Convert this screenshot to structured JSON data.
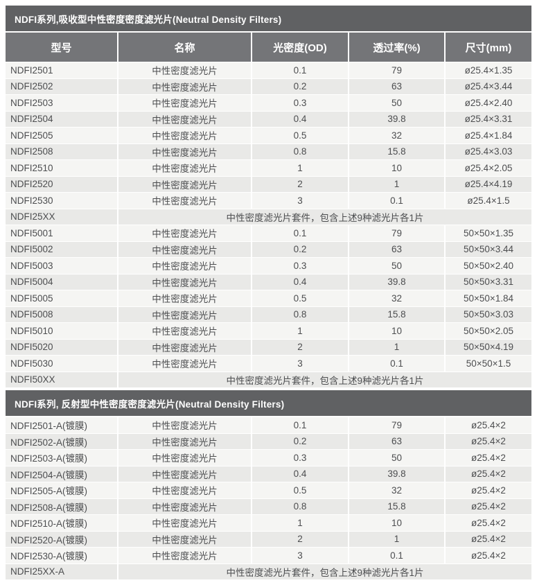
{
  "colors": {
    "section_bar_bg": "#606163",
    "header_bg": "#747578",
    "row_light": "#f5f5f3",
    "row_dark": "#e9e9e7",
    "body_text": "#4c4d4f",
    "header_text": "#ffffff"
  },
  "columns": [
    "型号",
    "名称",
    "光密度(OD)",
    "透过率(%)",
    "尺寸(mm)"
  ],
  "sections": [
    {
      "title": "NDFI系列,吸收型中性密度密度滤光片(Neutral Density Filters)",
      "show_column_header": true,
      "rows": [
        {
          "cells": [
            "NDFI2501",
            "中性密度滤光片",
            "0.1",
            "79",
            "ø25.4×1.35"
          ]
        },
        {
          "cells": [
            "NDFI2502",
            "中性密度滤光片",
            "0.2",
            "63",
            "ø25.4×3.44"
          ]
        },
        {
          "cells": [
            "NDFI2503",
            "中性密度滤光片",
            "0.3",
            "50",
            "ø25.4×2.40"
          ]
        },
        {
          "cells": [
            "NDFI2504",
            "中性密度滤光片",
            "0.4",
            "39.8",
            "ø25.4×3.31"
          ]
        },
        {
          "cells": [
            "NDFI2505",
            "中性密度滤光片",
            "0.5",
            "32",
            "ø25.4×1.84"
          ]
        },
        {
          "cells": [
            "NDFI2508",
            "中性密度滤光片",
            "0.8",
            "15.8",
            "ø25.4×3.03"
          ]
        },
        {
          "cells": [
            "NDFI2510",
            "中性密度滤光片",
            "1",
            "10",
            "ø25.4×2.05"
          ]
        },
        {
          "cells": [
            "NDFI2520",
            "中性密度滤光片",
            "2",
            "1",
            "ø25.4×4.19"
          ]
        },
        {
          "cells": [
            "NDFI2530",
            "中性密度滤光片",
            "3",
            "0.1",
            "ø25.4×1.5"
          ]
        },
        {
          "cells": [
            "NDFI25XX"
          ],
          "merged": "中性密度滤光片套件，包含上述9种滤光片各1片"
        },
        {
          "cells": [
            "NDFI5001",
            "中性密度滤光片",
            "0.1",
            "79",
            "50×50×1.35"
          ]
        },
        {
          "cells": [
            "NDFI5002",
            "中性密度滤光片",
            "0.2",
            "63",
            "50×50×3.44"
          ]
        },
        {
          "cells": [
            "NDFI5003",
            "中性密度滤光片",
            "0.3",
            "50",
            "50×50×2.40"
          ]
        },
        {
          "cells": [
            "NDFI5004",
            "中性密度滤光片",
            "0.4",
            "39.8",
            "50×50×3.31"
          ]
        },
        {
          "cells": [
            "NDFI5005",
            "中性密度滤光片",
            "0.5",
            "32",
            "50×50×1.84"
          ]
        },
        {
          "cells": [
            "NDFI5008",
            "中性密度滤光片",
            "0.8",
            "15.8",
            "50×50×3.03"
          ]
        },
        {
          "cells": [
            "NDFI5010",
            "中性密度滤光片",
            "1",
            "10",
            "50×50×2.05"
          ]
        },
        {
          "cells": [
            "NDFI5020",
            "中性密度滤光片",
            "2",
            "1",
            "50×50×4.19"
          ]
        },
        {
          "cells": [
            "NDFI5030",
            "中性密度滤光片",
            "3",
            "0.1",
            "50×50×1.5"
          ]
        },
        {
          "cells": [
            "NDFI50XX"
          ],
          "merged": "中性密度滤光片套件，包含上述9种滤光片各1片"
        }
      ]
    },
    {
      "title": "NDFI系列, 反射型中性密度密度滤光片(Neutral Density Filters)",
      "show_column_header": false,
      "rows": [
        {
          "cells": [
            "NDFI2501-A(镀膜)",
            "中性密度滤光片",
            "0.1",
            "79",
            "ø25.4×2"
          ]
        },
        {
          "cells": [
            "NDFI2502-A(镀膜)",
            "中性密度滤光片",
            "0.2",
            "63",
            "ø25.4×2"
          ]
        },
        {
          "cells": [
            "NDFI2503-A(镀膜)",
            "中性密度滤光片",
            "0.3",
            "50",
            "ø25.4×2"
          ]
        },
        {
          "cells": [
            "NDFI2504-A(镀膜)",
            "中性密度滤光片",
            "0.4",
            "39.8",
            "ø25.4×2"
          ]
        },
        {
          "cells": [
            "NDFI2505-A(镀膜)",
            "中性密度滤光片",
            "0.5",
            "32",
            "ø25.4×2"
          ]
        },
        {
          "cells": [
            "NDFI2508-A(镀膜)",
            "中性密度滤光片",
            "0.8",
            "15.8",
            "ø25.4×2"
          ]
        },
        {
          "cells": [
            "NDFI2510-A(镀膜)",
            "中性密度滤光片",
            "1",
            "10",
            "ø25.4×2"
          ]
        },
        {
          "cells": [
            "NDFI2520-A(镀膜)",
            "中性密度滤光片",
            "2",
            "1",
            "ø25.4×2"
          ]
        },
        {
          "cells": [
            "NDFI2530-A(镀膜)",
            "中性密度滤光片",
            "3",
            "0.1",
            "ø25.4×2"
          ]
        },
        {
          "cells": [
            "NDFI25XX-A"
          ],
          "merged": "中性密度滤光片套件，包含上述9种滤光片各1片"
        }
      ]
    }
  ]
}
